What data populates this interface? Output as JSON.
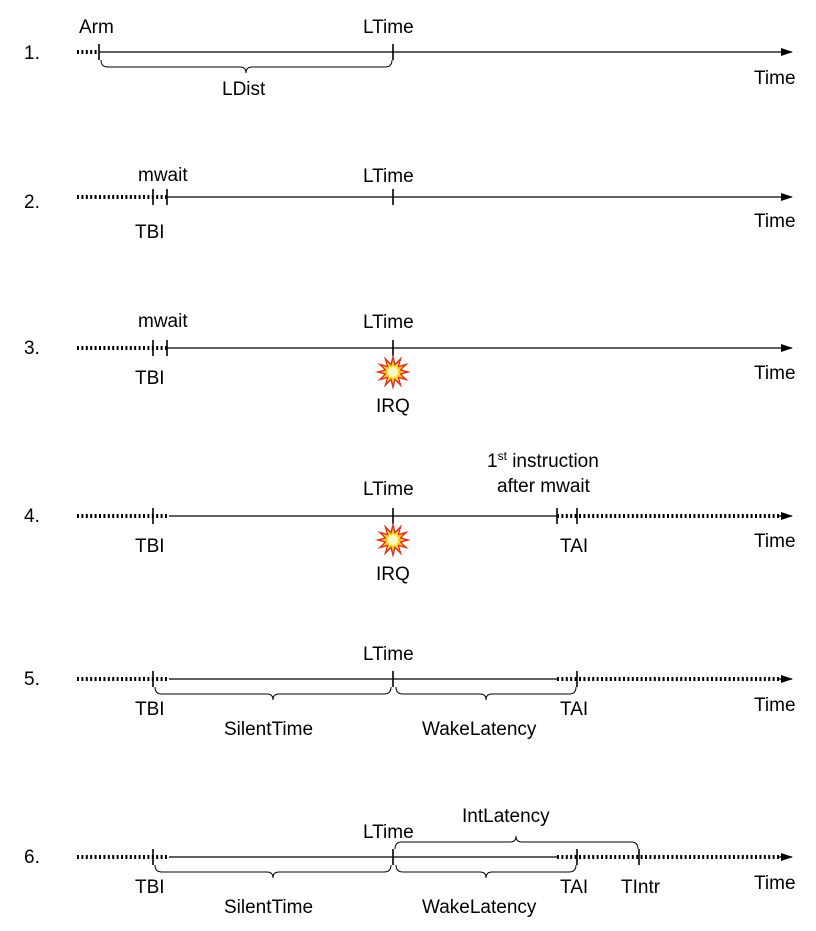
{
  "diagram": {
    "rows": [
      {
        "num": "1.",
        "time": "Time",
        "labels": {
          "arm": "Arm",
          "ltime": "LTime",
          "ldist": "LDist"
        }
      },
      {
        "num": "2.",
        "time": "Time",
        "labels": {
          "mwait": "mwait",
          "ltime": "LTime",
          "tbi": "TBI"
        }
      },
      {
        "num": "3.",
        "time": "Time",
        "labels": {
          "mwait": "mwait",
          "ltime": "LTime",
          "tbi": "TBI",
          "irq": "IRQ"
        },
        "icons": [
          "irq-burst-icon"
        ]
      },
      {
        "num": "4.",
        "time": "Time",
        "labels": {
          "ltime": "LTime",
          "tbi": "TBI",
          "irq": "IRQ",
          "tai": "TAI",
          "first_base": "1",
          "first_sup": "st",
          "first_rest": " instruction",
          "after": "after mwait"
        },
        "icons": [
          "irq-burst-icon"
        ]
      },
      {
        "num": "5.",
        "time": "Time",
        "labels": {
          "ltime": "LTime",
          "tbi": "TBI",
          "tai": "TAI",
          "silent": "SilentTime",
          "wake": "WakeLatency"
        }
      },
      {
        "num": "6.",
        "time": "Time",
        "labels": {
          "ltime": "LTime",
          "int_latency": "IntLatency",
          "tbi": "TBI",
          "tai": "TAI",
          "tintr": "TIntr",
          "silent": "SilentTime",
          "wake": "WakeLatency"
        }
      }
    ],
    "colors": {
      "line": "#000000",
      "burst_outer": "#e0301e",
      "burst_inner": "#f5d020",
      "burst_core": "#fff7c0"
    }
  }
}
